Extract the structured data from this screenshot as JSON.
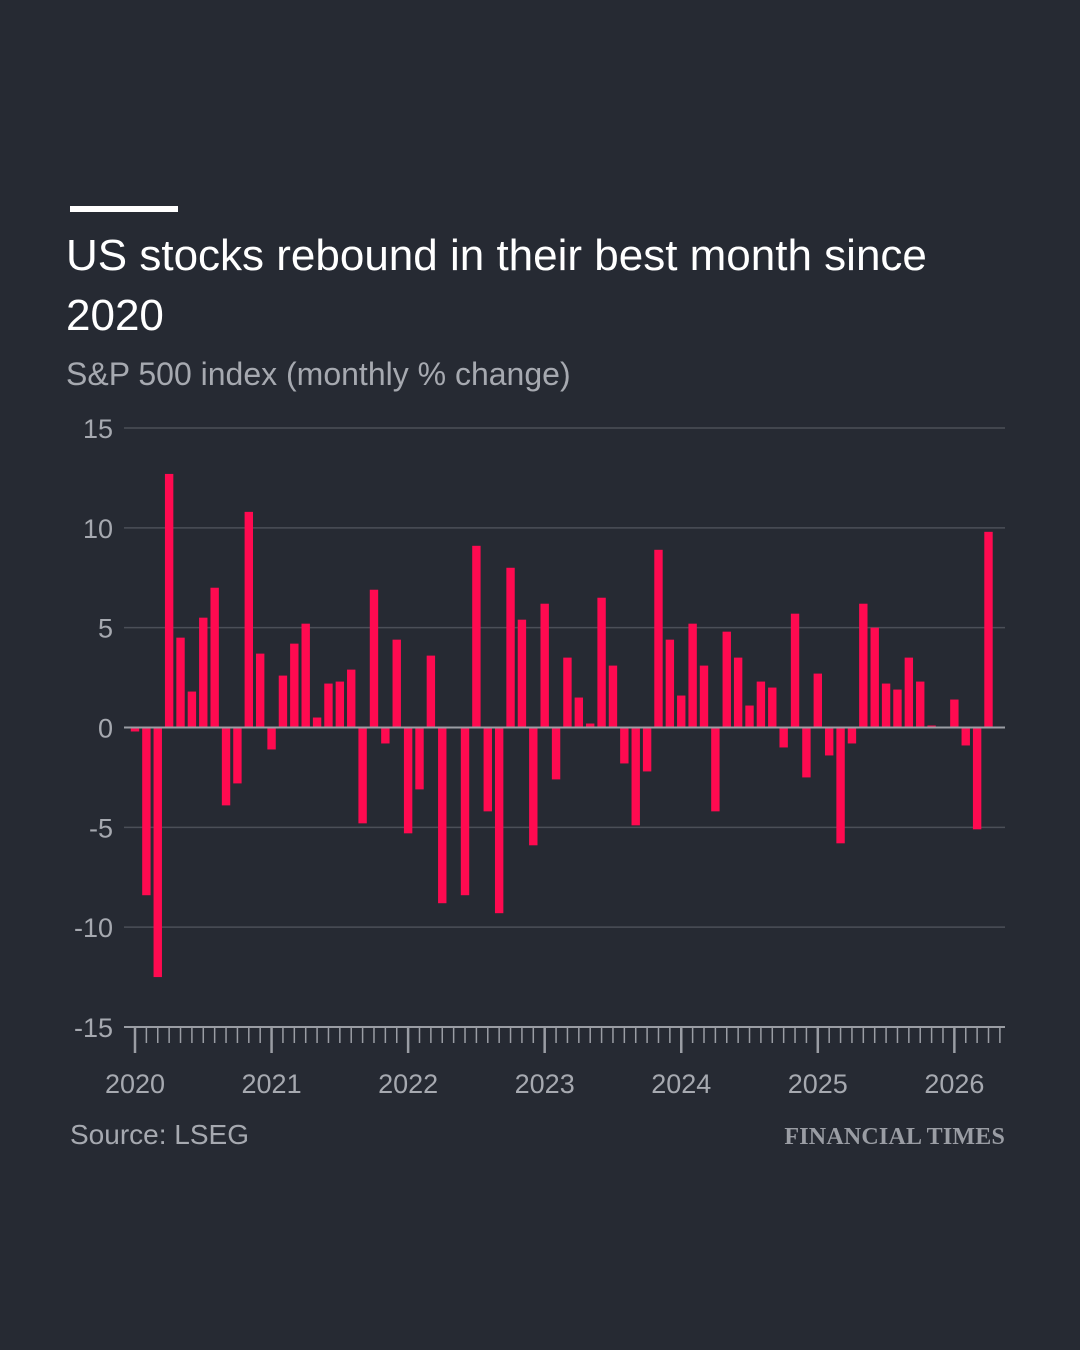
{
  "header": {
    "title": "US stocks rebound in their best month since 2020",
    "subtitle": "S&P 500 index (monthly % change)"
  },
  "footer": {
    "source": "Source: LSEG",
    "brand": "FINANCIAL TIMES"
  },
  "colors": {
    "background": "#262a33",
    "bar": "#ff0a50",
    "grid": "#4b4f58",
    "zero_line": "#9a9da4",
    "axis_text": "#a6a9b0",
    "title_text": "#ffffff"
  },
  "chart_data": {
    "type": "bar",
    "title": "US stocks rebound in their best month since 2020",
    "subtitle": "S&P 500 index (monthly % change)",
    "xlabel": "",
    "ylabel": "",
    "ylim": [
      -15,
      15
    ],
    "y_ticks": [
      15,
      10,
      5,
      0,
      -5,
      -10,
      -15
    ],
    "x_tick_labels": [
      "2020",
      "2021",
      "2022",
      "2023",
      "2024",
      "2025",
      "2026"
    ],
    "grid": true,
    "start_month": "2020-01",
    "categories": [
      "2020-01",
      "2020-02",
      "2020-03",
      "2020-04",
      "2020-05",
      "2020-06",
      "2020-07",
      "2020-08",
      "2020-09",
      "2020-10",
      "2020-11",
      "2020-12",
      "2021-01",
      "2021-02",
      "2021-03",
      "2021-04",
      "2021-05",
      "2021-06",
      "2021-07",
      "2021-08",
      "2021-09",
      "2021-10",
      "2021-11",
      "2021-12",
      "2022-01",
      "2022-02",
      "2022-03",
      "2022-04",
      "2022-05",
      "2022-06",
      "2022-07",
      "2022-08",
      "2022-09",
      "2022-10",
      "2022-11",
      "2022-12",
      "2023-01",
      "2023-02",
      "2023-03",
      "2023-04",
      "2023-05",
      "2023-06",
      "2023-07",
      "2023-08",
      "2023-09",
      "2023-10",
      "2023-11",
      "2023-12",
      "2024-01",
      "2024-02",
      "2024-03",
      "2024-04",
      "2024-05",
      "2024-06",
      "2024-07",
      "2024-08",
      "2024-09",
      "2024-10",
      "2024-11",
      "2024-12",
      "2025-01",
      "2025-02",
      "2025-03",
      "2025-04",
      "2025-05",
      "2025-06",
      "2025-07",
      "2025-08",
      "2025-09",
      "2025-10",
      "2025-11",
      "2025-12",
      "2026-01",
      "2026-02",
      "2026-03",
      "2026-04"
    ],
    "values": [
      -0.2,
      -8.4,
      -12.5,
      12.7,
      4.5,
      1.8,
      5.5,
      7.0,
      -3.9,
      -2.8,
      10.8,
      3.7,
      -1.1,
      2.6,
      4.2,
      5.2,
      0.5,
      2.2,
      2.3,
      2.9,
      -4.8,
      6.9,
      -0.8,
      4.4,
      -5.3,
      -3.1,
      3.6,
      -8.8,
      0.0,
      -8.4,
      9.1,
      -4.2,
      -9.3,
      8.0,
      5.4,
      -5.9,
      6.2,
      -2.6,
      3.5,
      1.5,
      0.2,
      6.5,
      3.1,
      -1.8,
      -4.9,
      -2.2,
      8.9,
      4.4,
      1.6,
      5.2,
      3.1,
      -4.2,
      4.8,
      3.5,
      1.1,
      2.3,
      2.0,
      -1.0,
      5.7,
      -2.5,
      2.7,
      -1.4,
      -5.8,
      -0.8,
      6.2,
      5.0,
      2.2,
      1.9,
      3.5,
      2.3,
      0.1,
      0.0,
      1.4,
      -0.9,
      -5.1,
      9.8
    ]
  }
}
